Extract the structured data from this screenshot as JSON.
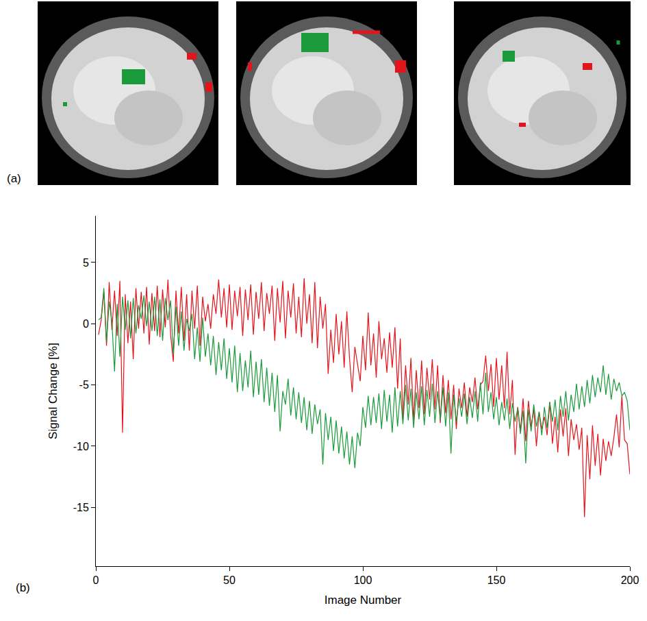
{
  "panel_a": {
    "label": "(a)"
  },
  "chart_data": {
    "type": "line",
    "label": "(b)",
    "x_label": "Image Number",
    "y_label": "Signal Change [%]",
    "xlim": [
      0,
      200
    ],
    "xticks": [
      0,
      50,
      100,
      150,
      200
    ],
    "ylim": [
      -19.8,
      8.8
    ],
    "yticks": [
      -15,
      -10,
      -5,
      0,
      5
    ],
    "grid": false,
    "x": [
      1,
      2,
      3,
      4,
      5,
      6,
      7,
      8,
      9,
      10,
      11,
      12,
      13,
      14,
      15,
      16,
      17,
      18,
      19,
      20,
      21,
      22,
      23,
      24,
      25,
      26,
      27,
      28,
      29,
      30,
      31,
      32,
      33,
      34,
      35,
      36,
      37,
      38,
      39,
      40,
      41,
      42,
      43,
      44,
      45,
      46,
      47,
      48,
      49,
      50,
      51,
      52,
      53,
      54,
      55,
      56,
      57,
      58,
      59,
      60,
      61,
      62,
      63,
      64,
      65,
      66,
      67,
      68,
      69,
      70,
      71,
      72,
      73,
      74,
      75,
      76,
      77,
      78,
      79,
      80,
      81,
      82,
      83,
      84,
      85,
      86,
      87,
      88,
      89,
      90,
      91,
      92,
      93,
      94,
      95,
      96,
      97,
      98,
      99,
      100,
      101,
      102,
      103,
      104,
      105,
      106,
      107,
      108,
      109,
      110,
      111,
      112,
      113,
      114,
      115,
      116,
      117,
      118,
      119,
      120,
      121,
      122,
      123,
      124,
      125,
      126,
      127,
      128,
      129,
      130,
      131,
      132,
      133,
      134,
      135,
      136,
      137,
      138,
      139,
      140,
      141,
      142,
      143,
      144,
      145,
      146,
      147,
      148,
      149,
      150,
      151,
      152,
      153,
      154,
      155,
      156,
      157,
      158,
      159,
      160,
      161,
      162,
      163,
      164,
      165,
      166,
      167,
      168,
      169,
      170,
      171,
      172,
      173,
      174,
      175,
      176,
      177,
      178,
      179,
      180,
      181,
      182,
      183,
      184,
      185,
      186,
      187,
      188,
      189,
      190,
      191,
      192,
      193,
      194,
      195,
      196,
      197,
      198,
      199,
      200
    ],
    "series": [
      {
        "color": "#e3141c",
        "values": [
          -0.9,
          0.3,
          2.6,
          -1.8,
          3.4,
          -0.5,
          2.7,
          -1.0,
          3.5,
          -8.9,
          2.4,
          -1.6,
          1.8,
          -2.9,
          2.9,
          -0.4,
          2.6,
          -0.8,
          3.0,
          -1.7,
          2.5,
          -0.6,
          3.1,
          -1.1,
          2.8,
          -0.3,
          3.6,
          -0.9,
          -3.1,
          2.7,
          -0.8,
          3.0,
          -1.4,
          2.4,
          -2.2,
          2.7,
          -0.4,
          3.1,
          -1.8,
          2.2,
          0.2,
          1.6,
          -0.4,
          2.4,
          0.8,
          3.6,
          0.5,
          2.9,
          -0.3,
          3.2,
          -0.5,
          2.7,
          0.6,
          3.0,
          -1.0,
          2.8,
          0.3,
          3.2,
          -0.9,
          2.6,
          0.4,
          3.4,
          -0.6,
          2.5,
          0.8,
          3.1,
          -1.4,
          2.9,
          0.1,
          3.5,
          -1.2,
          2.7,
          0.5,
          3.3,
          -0.8,
          2.2,
          -1.1,
          3.7,
          0.0,
          2.4,
          -1.6,
          3.4,
          -2.0,
          2.2,
          -0.4,
          1.6,
          -4.1,
          -0.5,
          -3.2,
          0.8,
          -2.5,
          0.2,
          -3.6,
          1.0,
          -2.8,
          -5.6,
          -1.9,
          -3.2,
          -4.7,
          -1.0,
          -3.8,
          0.9,
          -3.4,
          -0.8,
          -4.4,
          0.2,
          -2.9,
          -1.2,
          -4.0,
          -0.7,
          -3.6,
          -0.3,
          -5.3,
          -1.2,
          -7.8,
          -3.4,
          -6.6,
          -2.8,
          -7.9,
          -3.8,
          -6.9,
          -3.0,
          -7.4,
          -3.6,
          -6.2,
          -2.9,
          -7.0,
          -3.4,
          -8.1,
          -4.2,
          -7.3,
          -4.6,
          -7.8,
          -5.0,
          -8.6,
          -5.3,
          -6.9,
          -4.8,
          -7.6,
          -5.2,
          -6.4,
          -4.4,
          -7.0,
          -5.0,
          -4.7,
          -2.6,
          -5.5,
          -3.3,
          -6.8,
          -2.8,
          -6.2,
          -3.4,
          -6.9,
          -2.3,
          -7.4,
          -4.6,
          -10.7,
          -6.8,
          -8.8,
          -6.1,
          -9.6,
          -6.3,
          -8.4,
          -7.0,
          -10.0,
          -7.2,
          -8.6,
          -7.6,
          -9.1,
          -6.4,
          -9.8,
          -7.6,
          -10.5,
          -7.0,
          -9.2,
          -6.9,
          -10.8,
          -7.8,
          -9.5,
          -8.2,
          -10.3,
          -8.5,
          -15.8,
          -9.1,
          -12.7,
          -8.3,
          -11.6,
          -9.0,
          -12.4,
          -9.4,
          -11.2,
          -9.6,
          -10.8,
          -9.3,
          -7.4,
          -10.1,
          -5.9,
          -9.5,
          -9.8,
          -12.3
        ]
      },
      {
        "color": "#1a9a3a",
        "values": [
          0.3,
          0.5,
          2.9,
          -1.5,
          1.8,
          0.2,
          -3.9,
          1.6,
          -2.7,
          2.2,
          -0.5,
          1.9,
          -1.2,
          2.1,
          -0.8,
          1.5,
          0.4,
          2.3,
          -0.2,
          1.8,
          -0.6,
          2.2,
          -1.0,
          2.0,
          -1.4,
          2.1,
          0.3,
          1.9,
          -2.5,
          1.4,
          -1.8,
          1.0,
          -2.2,
          0.4,
          -0.6,
          0.8,
          -2.9,
          -0.3,
          -3.1,
          0.5,
          -2.7,
          -0.8,
          -3.4,
          -1.0,
          -4.2,
          -1.5,
          -3.8,
          -1.2,
          -4.5,
          -2.0,
          -4.8,
          -1.8,
          -5.6,
          -2.4,
          -5.5,
          -3.0,
          -5.2,
          -2.2,
          -6.0,
          -3.1,
          -5.8,
          -2.9,
          -6.4,
          -3.6,
          -6.7,
          -4.0,
          -7.2,
          -4.2,
          -8.8,
          -5.5,
          -6.6,
          -4.5,
          -7.5,
          -5.2,
          -7.8,
          -5.6,
          -8.1,
          -6.0,
          -8.7,
          -6.3,
          -9.0,
          -6.6,
          -8.2,
          -7.0,
          -11.5,
          -7.3,
          -9.5,
          -7.6,
          -10.4,
          -7.9,
          -10.6,
          -8.4,
          -11.0,
          -8.8,
          -11.5,
          -9.2,
          -11.8,
          -8.9,
          -10.0,
          -6.8,
          -8.5,
          -5.9,
          -8.3,
          -6.0,
          -8.1,
          -5.7,
          -8.6,
          -5.4,
          -8.0,
          -5.8,
          -8.9,
          -5.2,
          -8.4,
          -5.5,
          -8.2,
          -5.0,
          -7.9,
          -5.3,
          -8.5,
          -5.6,
          -7.8,
          -5.1,
          -8.3,
          -5.4,
          -7.6,
          -4.9,
          -8.1,
          -5.5,
          -7.9,
          -5.2,
          -8.4,
          -5.6,
          -10.6,
          -5.8,
          -8.0,
          -6.1,
          -7.6,
          -5.7,
          -8.2,
          -6.0,
          -7.7,
          -5.5,
          -8.0,
          -4.8,
          -7.4,
          -4.0,
          -7.2,
          -5.6,
          -7.8,
          -6.0,
          -8.3,
          -6.4,
          -7.9,
          -6.1,
          -8.6,
          -6.5,
          -8.0,
          -6.9,
          -9.0,
          -7.1,
          -11.4,
          -7.0,
          -8.8,
          -6.6,
          -8.4,
          -7.2,
          -9.1,
          -6.8,
          -8.5,
          -6.4,
          -8.0,
          -6.2,
          -8.7,
          -5.9,
          -7.6,
          -5.5,
          -7.9,
          -5.8,
          -7.2,
          -4.9,
          -7.0,
          -5.1,
          -6.8,
          -4.6,
          -6.5,
          -4.2,
          -6.0,
          -4.4,
          -5.6,
          -3.4,
          -5.8,
          -4.1,
          -6.2,
          -4.5,
          -5.5,
          -4.8,
          -5.9,
          -5.6,
          -6.3,
          -8.7
        ]
      }
    ]
  }
}
